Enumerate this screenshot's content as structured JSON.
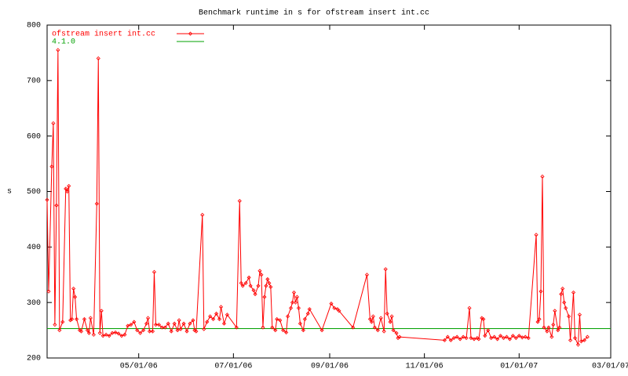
{
  "chart_data": {
    "type": "line",
    "title": "Benchmark runtime in s for ofstream insert int.cc",
    "ylabel": "s",
    "xlim": [
      "2006-03-03",
      "2007-03-01"
    ],
    "xticks": [
      {
        "value": "2006-05-01",
        "label": "05/01/06"
      },
      {
        "value": "2006-07-01",
        "label": "07/01/06"
      },
      {
        "value": "2006-09-01",
        "label": "09/01/06"
      },
      {
        "value": "2006-11-01",
        "label": "11/01/06"
      },
      {
        "value": "2007-01-01",
        "label": "01/01/07"
      },
      {
        "value": "2007-03-01",
        "label": "03/01/07"
      }
    ],
    "ylim": [
      200,
      800
    ],
    "yticks": [
      200,
      300,
      400,
      500,
      600,
      700,
      800
    ],
    "legend": "top-left",
    "x": [
      "2006-03-03",
      "2006-03-04",
      "2006-03-06",
      "2006-03-07",
      "2006-03-08",
      "2006-03-09",
      "2006-03-10",
      "2006-03-11",
      "2006-03-13",
      "2006-03-15",
      "2006-03-16",
      "2006-03-17",
      "2006-03-18",
      "2006-03-19",
      "2006-03-20",
      "2006-03-21",
      "2006-03-22",
      "2006-03-24",
      "2006-03-25",
      "2006-03-27",
      "2006-03-29",
      "2006-03-30",
      "2006-03-31",
      "2006-04-02",
      "2006-04-04",
      "2006-04-05",
      "2006-04-06",
      "2006-04-07",
      "2006-04-08",
      "2006-04-10",
      "2006-04-12",
      "2006-04-14",
      "2006-04-16",
      "2006-04-18",
      "2006-04-20",
      "2006-04-22",
      "2006-04-24",
      "2006-04-26",
      "2006-04-28",
      "2006-04-30",
      "2006-05-02",
      "2006-05-04",
      "2006-05-06",
      "2006-05-07",
      "2006-05-08",
      "2006-05-10",
      "2006-05-11",
      "2006-05-12",
      "2006-05-14",
      "2006-05-16",
      "2006-05-18",
      "2006-05-20",
      "2006-05-22",
      "2006-05-24",
      "2006-05-26",
      "2006-05-27",
      "2006-05-28",
      "2006-05-30",
      "2006-06-01",
      "2006-06-03",
      "2006-06-05",
      "2006-06-06",
      "2006-06-07",
      "2006-06-11",
      "2006-06-12",
      "2006-06-14",
      "2006-06-16",
      "2006-06-18",
      "2006-06-20",
      "2006-06-22",
      "2006-06-23",
      "2006-06-25",
      "2006-06-27",
      "2006-07-03",
      "2006-07-05",
      "2006-07-06",
      "2006-07-07",
      "2006-07-09",
      "2006-07-11",
      "2006-07-12",
      "2006-07-14",
      "2006-07-15",
      "2006-07-17",
      "2006-07-18",
      "2006-07-19",
      "2006-07-20",
      "2006-07-21",
      "2006-07-22",
      "2006-07-23",
      "2006-07-24",
      "2006-07-25",
      "2006-07-26",
      "2006-07-28",
      "2006-07-29",
      "2006-07-31",
      "2006-08-02",
      "2006-08-04",
      "2006-08-05",
      "2006-08-07",
      "2006-08-08",
      "2006-08-09",
      "2006-08-10",
      "2006-08-11",
      "2006-08-12",
      "2006-08-13",
      "2006-08-15",
      "2006-08-16",
      "2006-08-18",
      "2006-08-19",
      "2006-08-27",
      "2006-09-02",
      "2006-09-04",
      "2006-09-06",
      "2006-09-07",
      "2006-09-16",
      "2006-09-25",
      "2006-09-27",
      "2006-09-28",
      "2006-09-29",
      "2006-09-30",
      "2006-10-02",
      "2006-10-04",
      "2006-10-06",
      "2006-10-07",
      "2006-10-08",
      "2006-10-10",
      "2006-10-11",
      "2006-10-12",
      "2006-10-14",
      "2006-10-15",
      "2006-10-16",
      "2006-11-14",
      "2006-11-16",
      "2006-11-18",
      "2006-11-20",
      "2006-11-22",
      "2006-11-24",
      "2006-11-26",
      "2006-11-28",
      "2006-11-30",
      "2006-12-01",
      "2006-12-03",
      "2006-12-05",
      "2006-12-06",
      "2006-12-08",
      "2006-12-09",
      "2006-12-10",
      "2006-12-12",
      "2006-12-14",
      "2006-12-16",
      "2006-12-18",
      "2006-12-20",
      "2006-12-22",
      "2006-12-24",
      "2006-12-26",
      "2006-12-28",
      "2006-12-30",
      "2007-01-01",
      "2007-01-03",
      "2007-01-05",
      "2007-01-07",
      "2007-01-12",
      "2007-01-13",
      "2007-01-14",
      "2007-01-15",
      "2007-01-16",
      "2007-01-17",
      "2007-01-19",
      "2007-01-20",
      "2007-01-22",
      "2007-01-23",
      "2007-01-24",
      "2007-01-26",
      "2007-01-27",
      "2007-01-28",
      "2007-01-29",
      "2007-01-30",
      "2007-01-31",
      "2007-02-02",
      "2007-02-03",
      "2007-02-05",
      "2007-02-06",
      "2007-02-08",
      "2007-02-09",
      "2007-02-10",
      "2007-02-12",
      "2007-02-14"
    ],
    "series": [
      {
        "name": "ofstream insert int.cc",
        "color": "#ff0000",
        "values": [
          485,
          320,
          545,
          623,
          260,
          475,
          755,
          250,
          265,
          505,
          500,
          510,
          268,
          270,
          325,
          310,
          270,
          250,
          248,
          270,
          250,
          245,
          272,
          242,
          478,
          740,
          245,
          285,
          240,
          242,
          240,
          245,
          246,
          244,
          240,
          242,
          258,
          260,
          265,
          250,
          245,
          250,
          262,
          272,
          248,
          248,
          355,
          260,
          260,
          255,
          255,
          262,
          248,
          262,
          250,
          268,
          252,
          262,
          248,
          262,
          268,
          250,
          248,
          458,
          252,
          265,
          275,
          270,
          280,
          270,
          292,
          262,
          278,
          255,
          483,
          335,
          330,
          335,
          345,
          330,
          322,
          315,
          330,
          357,
          350,
          255,
          310,
          330,
          342,
          335,
          328,
          255,
          250,
          270,
          268,
          250,
          246,
          275,
          290,
          300,
          318,
          300,
          310,
          290,
          262,
          250,
          270,
          280,
          288,
          250,
          298,
          290,
          288,
          285,
          255,
          350,
          270,
          265,
          275,
          255,
          250,
          272,
          248,
          360,
          280,
          265,
          275,
          250,
          245,
          236,
          238,
          232,
          238,
          232,
          236,
          238,
          234,
          238,
          236,
          290,
          236,
          234,
          236,
          234,
          272,
          270,
          240,
          250,
          236,
          238,
          234,
          240,
          236,
          238,
          234,
          240,
          236,
          240,
          237,
          238,
          236,
          422,
          265,
          270,
          320,
          527,
          255,
          248,
          255,
          238,
          260,
          285,
          250,
          255,
          315,
          325,
          300,
          290,
          275,
          232,
          318,
          236,
          224,
          278,
          230,
          232,
          238
        ]
      }
    ],
    "reference_lines": [
      {
        "name": "4.1.0",
        "value": 253,
        "color": "#00a000"
      }
    ]
  }
}
